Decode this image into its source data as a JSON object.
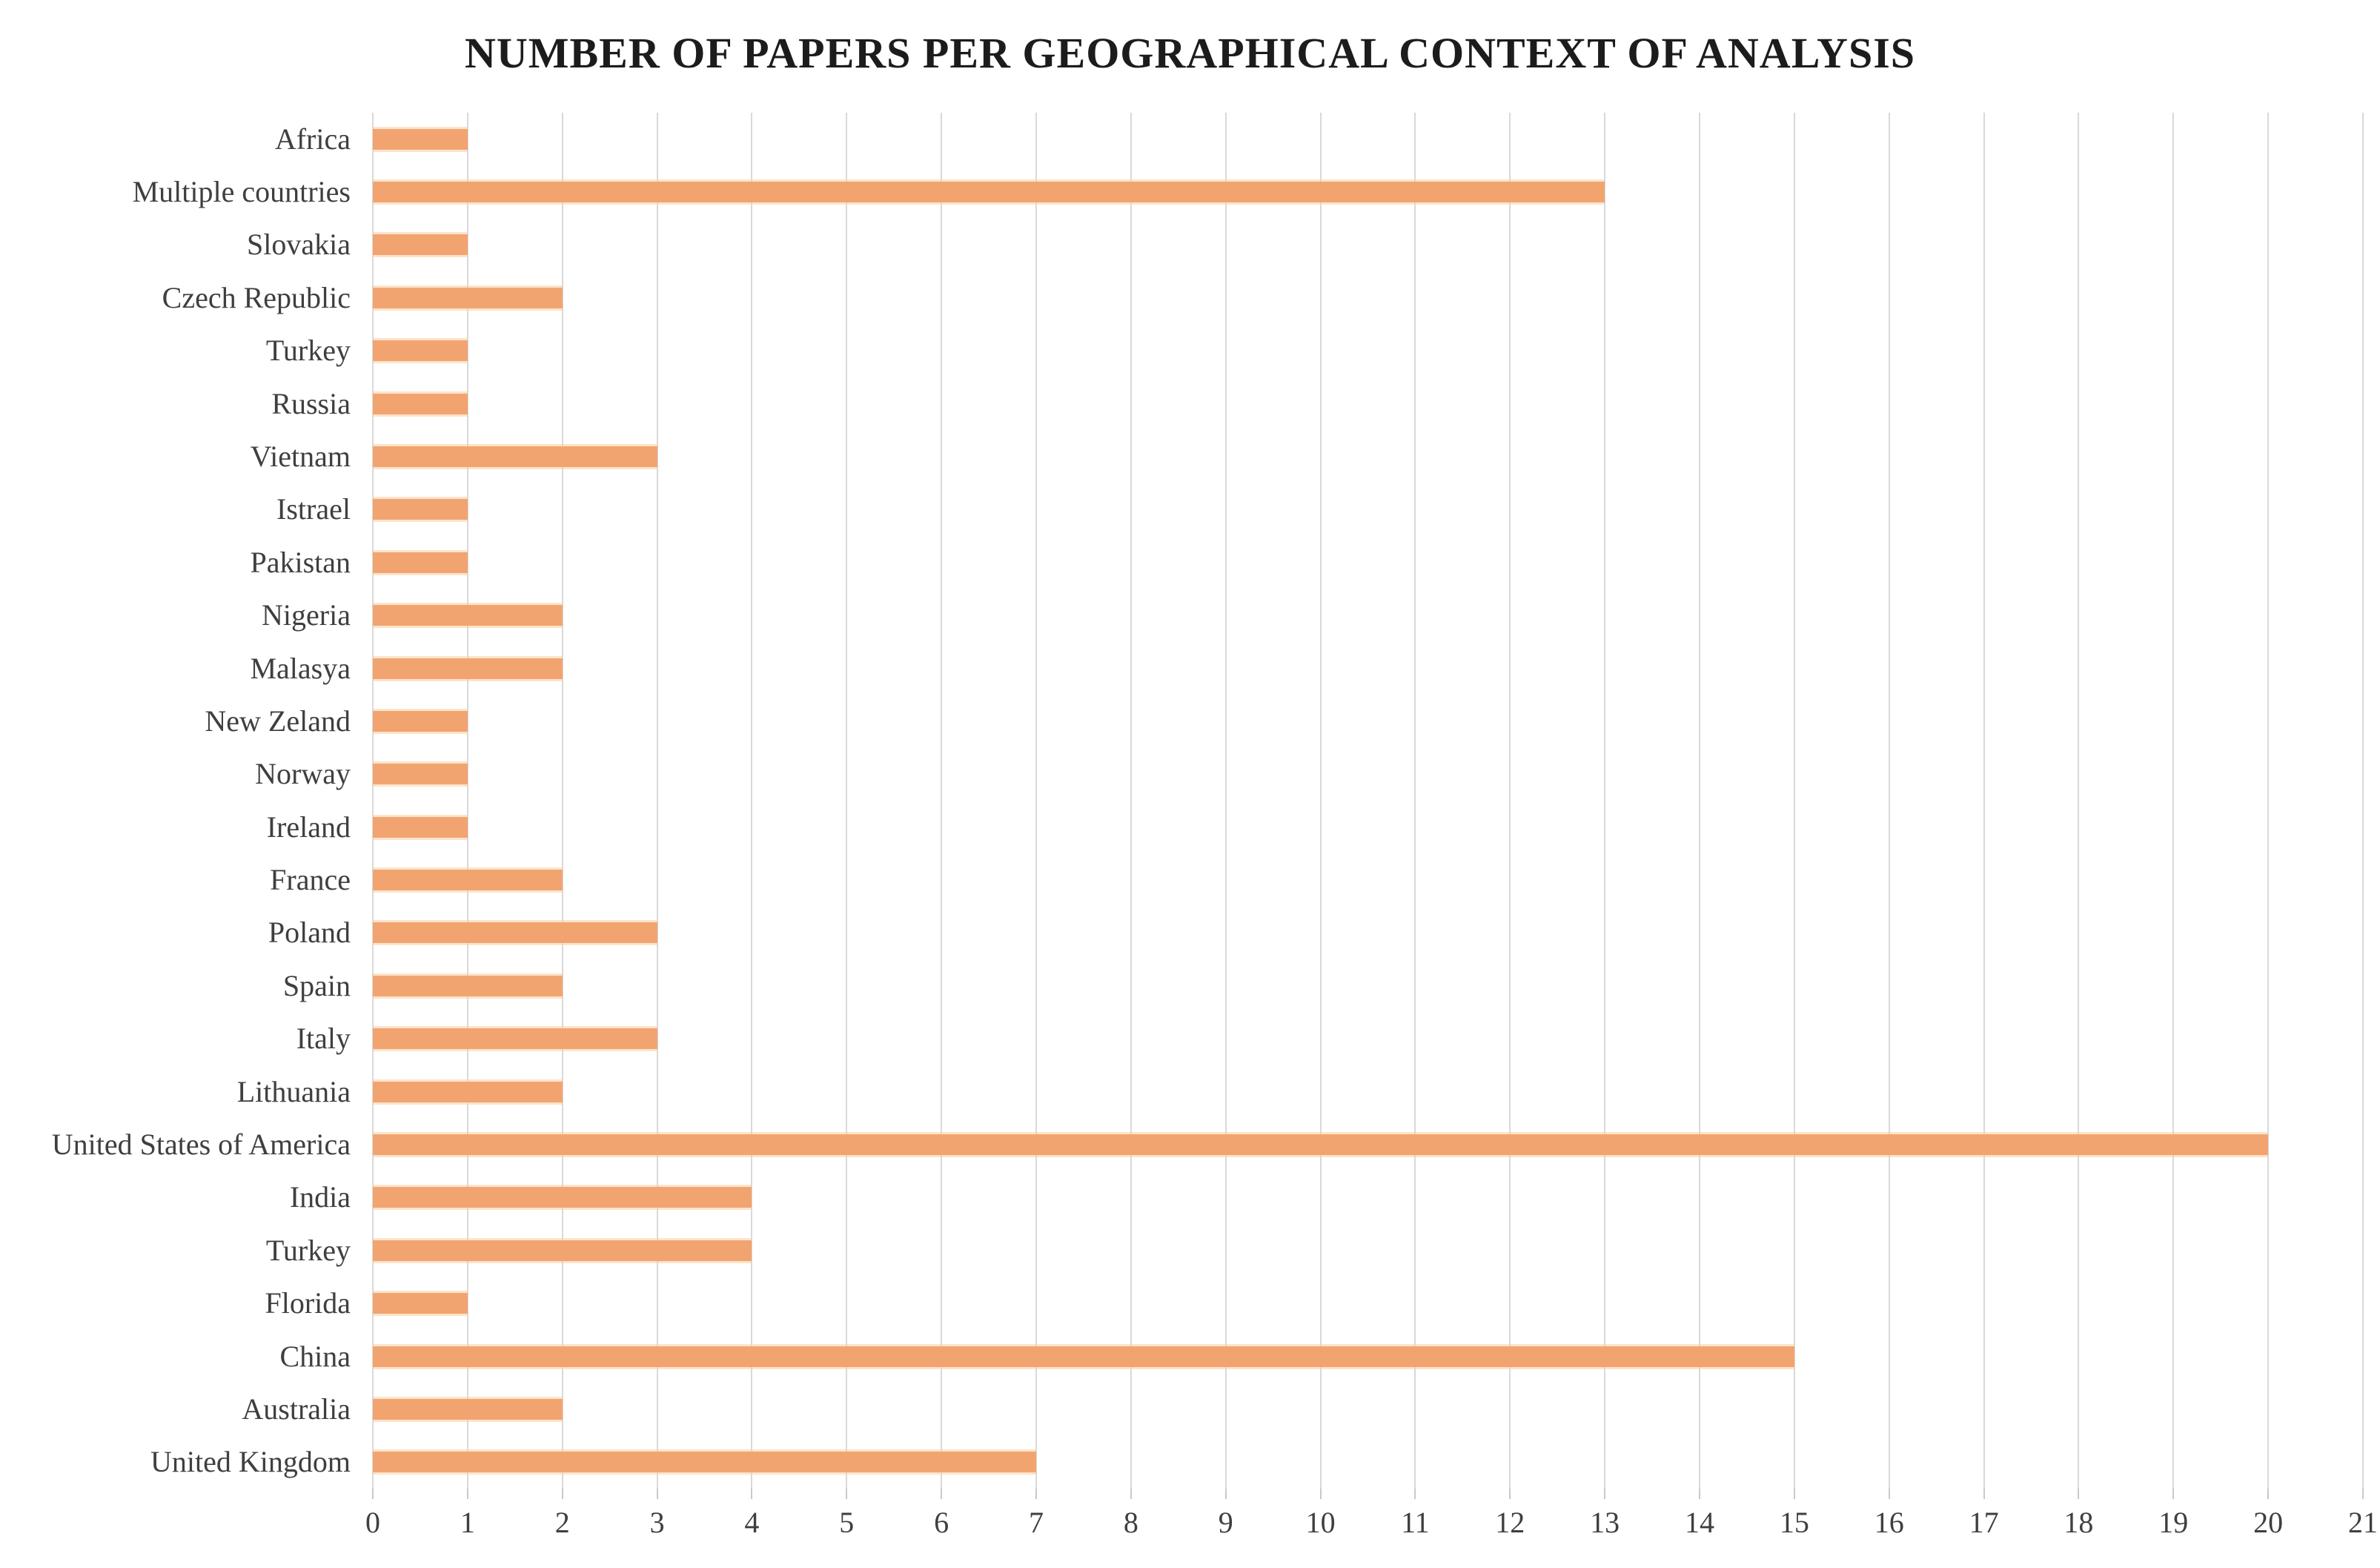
{
  "title": "NUMBER OF PAPERS PER GEOGRAPHICAL CONTEXT OF ANALYSIS",
  "colors": {
    "bar": "#f2a470",
    "grid": "#d9d9d9",
    "tick": "#c9c9c9",
    "label_text": "#3f3f3f",
    "title_text": "#1c1c1c",
    "background": "#ffffff"
  },
  "chart_data": {
    "type": "bar",
    "orientation": "horizontal",
    "title": "NUMBER OF PAPERS PER GEOGRAPHICAL CONTEXT OF ANALYSIS",
    "xlabel": "",
    "ylabel": "",
    "grid": true,
    "legend": "none",
    "xlim": [
      0,
      21
    ],
    "x_ticks": [
      0,
      1,
      2,
      3,
      4,
      5,
      6,
      7,
      8,
      9,
      10,
      11,
      12,
      13,
      14,
      15,
      16,
      17,
      18,
      19,
      20,
      21
    ],
    "categories": [
      "Africa",
      "Multiple countries",
      "Slovakia",
      "Czech Republic",
      "Turkey",
      "Russia",
      "Vietnam",
      "Istrael",
      "Pakistan",
      "Nigeria",
      "Malasya",
      "New Zeland",
      "Norway",
      "Ireland",
      "France",
      "Poland",
      "Spain",
      "Italy",
      "Lithuania",
      "United States of America",
      "India",
      "Turkey",
      "Florida",
      "China",
      "Australia",
      "United Kingdom"
    ],
    "values": [
      1,
      13,
      1,
      2,
      1,
      1,
      3,
      1,
      1,
      2,
      2,
      1,
      1,
      1,
      2,
      3,
      2,
      3,
      2,
      20,
      4,
      4,
      1,
      15,
      2,
      7
    ]
  }
}
